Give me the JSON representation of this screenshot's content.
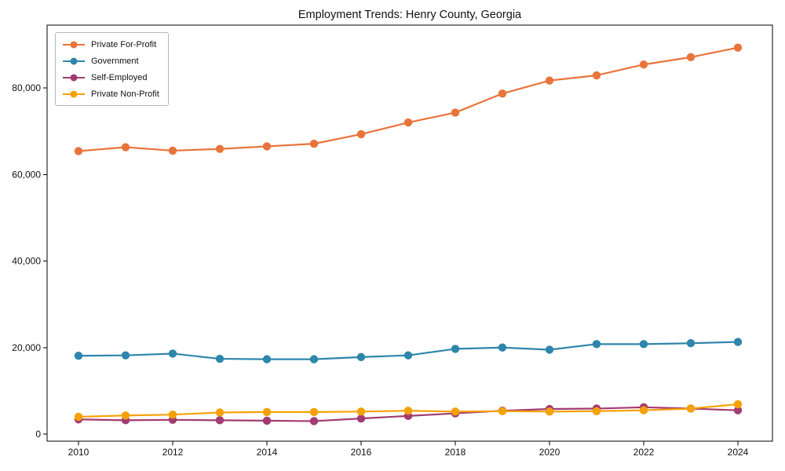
{
  "title": "Employment Trends: Henry County, Georgia",
  "chart_data": {
    "type": "line",
    "title": "Employment Trends: Henry County, Georgia",
    "x": [
      2010,
      2011,
      2012,
      2013,
      2014,
      2015,
      2016,
      2017,
      2018,
      2019,
      2020,
      2021,
      2022,
      2023,
      2024
    ],
    "x_tick_labels": [
      "2010",
      "2012",
      "2014",
      "2016",
      "2018",
      "2020",
      "2022",
      "2024"
    ],
    "y_ticks": [
      0,
      20000,
      40000,
      60000,
      80000
    ],
    "y_tick_labels": [
      "0",
      "20,000",
      "40,000",
      "60,000",
      "80,000"
    ],
    "xlim": [
      2009.3,
      2024.75
    ],
    "ylim": [
      -1600,
      94500
    ],
    "grid": false,
    "legend_position": "upper-left",
    "marker": "circle",
    "series": [
      {
        "name": "Private For-Profit",
        "color": "#e8743b",
        "values": [
          65400,
          66300,
          65500,
          65900,
          66500,
          67100,
          69300,
          72000,
          74300,
          78700,
          81700,
          82900,
          85400,
          87100,
          89300
        ]
      },
      {
        "name": "Government",
        "color": "#2e86ab",
        "values": [
          18100,
          18200,
          18600,
          17400,
          17300,
          17300,
          17800,
          18200,
          19700,
          20000,
          19500,
          20800,
          20800,
          21000,
          21300
        ]
      },
      {
        "name": "Self-Employed",
        "color": "#a23b72",
        "values": [
          3400,
          3200,
          3300,
          3200,
          3100,
          3000,
          3600,
          4200,
          4800,
          5400,
          5800,
          5900,
          6200,
          5900,
          5500
        ]
      },
      {
        "name": "Private Non-Profit",
        "color": "#f5a106",
        "values": [
          4000,
          4300,
          4500,
          5000,
          5100,
          5100,
          5200,
          5400,
          5200,
          5300,
          5200,
          5300,
          5500,
          5900,
          6900
        ]
      }
    ],
    "text_color": "#111111",
    "axis_color": "#000000",
    "background_color": "#ffffff"
  }
}
